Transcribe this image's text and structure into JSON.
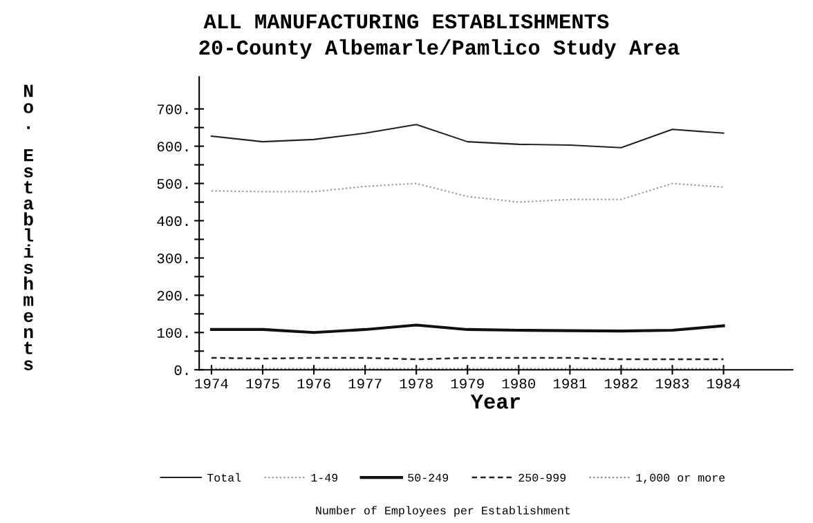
{
  "chart_data": {
    "type": "line",
    "title": "ALL MANUFACTURING ESTABLISHMENTS",
    "subtitle": "20-County Albemarle/Pamlico Study Area",
    "xlabel": "Year",
    "ylabel": "No. Establishments",
    "legend_title": "Number of Employees per Establishment",
    "x": [
      1974,
      1975,
      1976,
      1977,
      1978,
      1979,
      1980,
      1981,
      1982,
      1983,
      1984
    ],
    "series": [
      {
        "name": "Total",
        "color": "#222222",
        "line_style": "solid",
        "values": [
          627,
          612,
          618,
          635,
          658,
          612,
          605,
          603,
          596,
          645,
          635
        ]
      },
      {
        "name": "1-49",
        "color": "#999999",
        "line_style": "dotted",
        "values": [
          480,
          478,
          478,
          492,
          500,
          465,
          450,
          457,
          457,
          500,
          490
        ]
      },
      {
        "name": "50-249",
        "color": "#111111",
        "line_style": "solid",
        "values": [
          108,
          108,
          100,
          108,
          120,
          108,
          106,
          105,
          104,
          106,
          118
        ]
      },
      {
        "name": "250-999",
        "color": "#222222",
        "line_style": "dashed",
        "values": [
          32,
          30,
          32,
          32,
          28,
          32,
          32,
          32,
          28,
          28,
          28
        ]
      },
      {
        "name": "1,000 or more",
        "color": "#888888",
        "line_style": "dotted",
        "values": [
          3,
          3,
          3,
          3,
          3,
          3,
          3,
          3,
          3,
          3,
          3
        ]
      }
    ],
    "xlim": [
      1973.76,
      1985.35
    ],
    "ylim": [
      0,
      786
    ],
    "xticks": [
      1974,
      1975,
      1976,
      1977,
      1978,
      1979,
      1980,
      1981,
      1982,
      1983,
      1984
    ],
    "yticks": [
      {
        "value": 0,
        "label": "0."
      },
      {
        "value": 50,
        "label": null
      },
      {
        "value": 100,
        "label": "100."
      },
      {
        "value": 150,
        "label": null
      },
      {
        "value": 200,
        "label": "200."
      },
      {
        "value": 250,
        "label": null
      },
      {
        "value": 300,
        "label": "300."
      },
      {
        "value": 350,
        "label": null
      },
      {
        "value": 400,
        "label": "400."
      },
      {
        "value": 450,
        "label": null
      },
      {
        "value": 500,
        "label": "500."
      },
      {
        "value": 550,
        "label": null
      },
      {
        "value": 600,
        "label": "600."
      },
      {
        "value": 650,
        "label": null
      },
      {
        "value": 700,
        "label": "700."
      }
    ],
    "grid": false,
    "legend": "bottom",
    "marker": "none"
  }
}
